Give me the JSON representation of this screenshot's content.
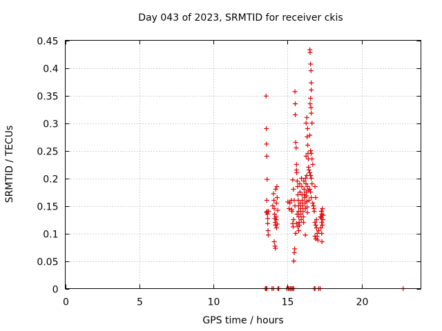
{
  "chart_data": {
    "type": "scatter",
    "title": "Day 043 of 2023, SRMTID for receiver ckis",
    "xlabel": "GPS time / hours",
    "ylabel": "SRMTID / TECUs",
    "xlim": [
      0,
      24
    ],
    "ylim": [
      0,
      0.45
    ],
    "xticks": [
      0,
      5,
      10,
      15,
      20
    ],
    "yticks": [
      0,
      0.05,
      0.1,
      0.15,
      0.2,
      0.25,
      0.3,
      0.35,
      0.4,
      0.45
    ],
    "grid": true,
    "marker": "+",
    "color": "#e00000",
    "series": [
      {
        "points": [
          [
            13.5,
            0
          ],
          [
            13.55,
            0
          ],
          [
            13.6,
            0
          ],
          [
            13.95,
            0
          ],
          [
            14.05,
            0
          ],
          [
            14.35,
            0
          ],
          [
            14.4,
            0
          ],
          [
            14.95,
            0
          ],
          [
            15.05,
            0
          ],
          [
            15.12,
            0
          ],
          [
            15.2,
            0
          ],
          [
            15.28,
            0
          ],
          [
            15.35,
            0
          ],
          [
            15.42,
            0
          ],
          [
            16.8,
            0
          ],
          [
            16.85,
            0
          ],
          [
            17.1,
            0
          ],
          [
            17.2,
            0
          ],
          [
            22.8,
            0
          ],
          [
            13.55,
            0.349
          ],
          [
            13.57,
            0.29
          ],
          [
            13.58,
            0.262
          ],
          [
            13.6,
            0.24
          ],
          [
            13.62,
            0.198
          ],
          [
            13.6,
            0.16
          ],
          [
            13.62,
            0.14
          ],
          [
            13.64,
            0.135
          ],
          [
            13.66,
            0.127
          ],
          [
            13.66,
            0.118
          ],
          [
            13.68,
            0.105
          ],
          [
            13.7,
            0.097
          ],
          [
            13.58,
            0.138
          ],
          [
            13.72,
            0.14
          ],
          [
            14.05,
            0.172
          ],
          [
            14.08,
            0.16
          ],
          [
            14.1,
            0.145
          ],
          [
            14.12,
            0.135
          ],
          [
            14.14,
            0.127
          ],
          [
            14.16,
            0.12
          ],
          [
            14.18,
            0.115
          ],
          [
            14.2,
            0.18
          ],
          [
            14.22,
            0.13
          ],
          [
            14.24,
            0.125
          ],
          [
            14.26,
            0.11
          ],
          [
            14.28,
            0.185
          ],
          [
            14.3,
            0.165
          ],
          [
            14.1,
            0.085
          ],
          [
            14.15,
            0.077
          ],
          [
            14.18,
            0.073
          ],
          [
            14.3,
            0.117
          ],
          [
            14.34,
            0.142
          ],
          [
            14.25,
            0.155
          ],
          [
            14.0,
            0.15
          ],
          [
            15.02,
            0.157
          ],
          [
            15.1,
            0.145
          ],
          [
            15.15,
            0.155
          ],
          [
            15.25,
            0.16
          ],
          [
            15.28,
            0.143
          ],
          [
            15.3,
            0.14
          ],
          [
            15.35,
            0.118
          ],
          [
            15.38,
            0.112
          ],
          [
            15.4,
            0.125
          ],
          [
            15.42,
            0.05
          ],
          [
            15.45,
            0.065
          ],
          [
            15.48,
            0.072
          ],
          [
            15.35,
            0.197
          ],
          [
            15.4,
            0.18
          ],
          [
            15.45,
            0.16
          ],
          [
            15.5,
            0.15
          ],
          [
            15.5,
            0.357
          ],
          [
            15.52,
            0.335
          ],
          [
            15.52,
            0.315
          ],
          [
            15.55,
            0.265
          ],
          [
            15.58,
            0.255
          ],
          [
            15.6,
            0.225
          ],
          [
            15.6,
            0.215
          ],
          [
            15.62,
            0.21
          ],
          [
            15.65,
            0.195
          ],
          [
            15.68,
            0.185
          ],
          [
            15.7,
            0.17
          ],
          [
            15.72,
            0.16
          ],
          [
            15.74,
            0.15
          ],
          [
            15.75,
            0.14
          ],
          [
            15.76,
            0.13
          ],
          [
            15.78,
            0.12
          ],
          [
            15.8,
            0.115
          ],
          [
            15.82,
            0.19
          ],
          [
            15.84,
            0.175
          ],
          [
            15.86,
            0.155
          ],
          [
            15.88,
            0.145
          ],
          [
            15.9,
            0.135
          ],
          [
            15.92,
            0.125
          ],
          [
            15.94,
            0.2
          ],
          [
            15.96,
            0.185
          ],
          [
            15.98,
            0.17
          ],
          [
            16.0,
            0.16
          ],
          [
            16.02,
            0.15
          ],
          [
            16.04,
            0.14
          ],
          [
            16.06,
            0.13
          ],
          [
            16.08,
            0.12
          ],
          [
            16.1,
            0.195
          ],
          [
            16.12,
            0.18
          ],
          [
            16.14,
            0.17
          ],
          [
            16.16,
            0.165
          ],
          [
            16.18,
            0.155
          ],
          [
            16.2,
            0.145
          ],
          [
            16.22,
            0.2
          ],
          [
            16.24,
            0.19
          ],
          [
            16.26,
            0.175
          ],
          [
            16.28,
            0.168
          ],
          [
            16.3,
            0.158
          ],
          [
            16.32,
            0.148
          ],
          [
            16.34,
            0.138
          ],
          [
            16.2,
            0.097
          ],
          [
            16.25,
            0.3
          ],
          [
            16.3,
            0.31
          ],
          [
            16.35,
            0.29
          ],
          [
            16.32,
            0.275
          ],
          [
            16.38,
            0.245
          ],
          [
            16.4,
            0.235
          ],
          [
            16.42,
            0.22
          ],
          [
            16.44,
            0.215
          ],
          [
            16.36,
            0.26
          ],
          [
            16.25,
            0.24
          ],
          [
            16.3,
            0.205
          ],
          [
            16.35,
            0.185
          ],
          [
            16.4,
            0.178
          ],
          [
            16.45,
            0.16
          ],
          [
            15.7,
            0.112
          ],
          [
            15.75,
            0.105
          ],
          [
            15.65,
            0.135
          ],
          [
            15.55,
            0.1
          ],
          [
            15.6,
            0.118
          ],
          [
            16.5,
            0.433
          ],
          [
            16.52,
            0.428
          ],
          [
            16.55,
            0.407
          ],
          [
            16.58,
            0.395
          ],
          [
            16.6,
            0.373
          ],
          [
            16.6,
            0.36
          ],
          [
            16.55,
            0.345
          ],
          [
            16.52,
            0.335
          ],
          [
            16.58,
            0.328
          ],
          [
            16.6,
            0.318
          ],
          [
            16.65,
            0.3
          ],
          [
            16.5,
            0.278
          ],
          [
            16.55,
            0.25
          ],
          [
            16.6,
            0.245
          ],
          [
            16.65,
            0.235
          ],
          [
            16.7,
            0.225
          ],
          [
            16.5,
            0.21
          ],
          [
            16.55,
            0.205
          ],
          [
            16.6,
            0.2
          ],
          [
            16.65,
            0.19
          ],
          [
            16.5,
            0.18
          ],
          [
            16.55,
            0.175
          ],
          [
            16.6,
            0.165
          ],
          [
            16.7,
            0.155
          ],
          [
            16.75,
            0.15
          ],
          [
            16.78,
            0.145
          ],
          [
            16.8,
            0.14
          ],
          [
            16.85,
            0.185
          ],
          [
            16.9,
            0.165
          ],
          [
            16.85,
            0.12
          ],
          [
            16.9,
            0.115
          ],
          [
            16.95,
            0.11
          ],
          [
            17.0,
            0.1
          ],
          [
            16.85,
            0.095
          ],
          [
            16.9,
            0.09
          ],
          [
            17.05,
            0.088
          ],
          [
            17.0,
            0.095
          ],
          [
            17.1,
            0.105
          ],
          [
            16.95,
            0.125
          ],
          [
            17.3,
            0.14
          ],
          [
            17.35,
            0.145
          ],
          [
            17.32,
            0.135
          ],
          [
            17.28,
            0.128
          ],
          [
            17.3,
            0.12
          ],
          [
            17.35,
            0.115
          ],
          [
            17.38,
            0.125
          ],
          [
            17.25,
            0.11
          ],
          [
            17.3,
            0.1
          ],
          [
            17.32,
            0.085
          ],
          [
            17.22,
            0.13
          ],
          [
            17.4,
            0.133
          ],
          [
            17.28,
            0.14
          ]
        ]
      }
    ]
  }
}
